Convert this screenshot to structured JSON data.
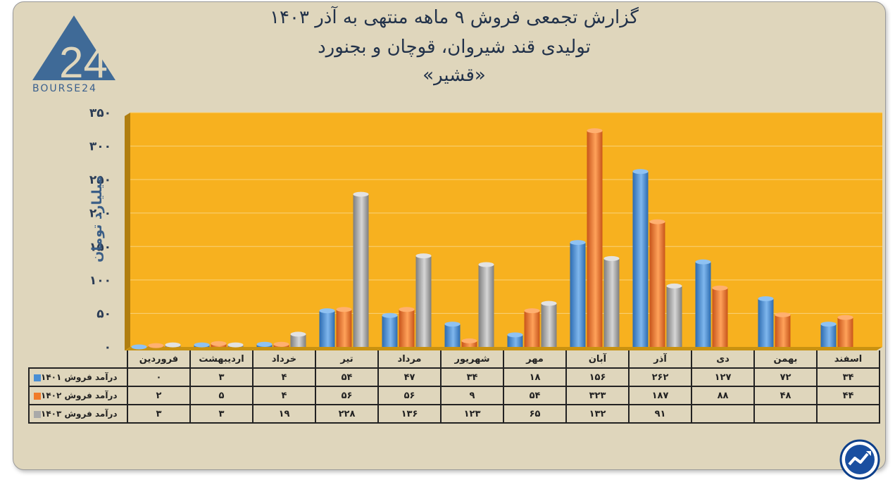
{
  "header": {
    "title_line1": "گزارش تجمعی فروش ۹ ماهه منتهی به آذر ۱۴۰۳",
    "title_line2": "تولیدی قند شیروان، قوچان و بجنورد",
    "title_line3": "«قشیر»"
  },
  "logo": {
    "text": "BOURSE24",
    "mark": "24"
  },
  "colors": {
    "plot_bg": "#f7b11f",
    "card_bg": "#dfd6bc",
    "series1": "#4a8fd4",
    "series2": "#f07b2a",
    "series3": "#a9a9a9"
  },
  "chart_data": {
    "type": "bar",
    "ylabel": "میلیارد تومان",
    "ylim": [
      0,
      350
    ],
    "yticks": [
      "۰",
      "۵۰",
      "۱۰۰",
      "۱۵۰",
      "۲۰۰",
      "۲۵۰",
      "۳۰۰",
      "۳۵۰"
    ],
    "ytick_values": [
      0,
      50,
      100,
      150,
      200,
      250,
      300,
      350
    ],
    "categories": [
      "فروردین",
      "اردیبهشت",
      "خرداد",
      "تیر",
      "مرداد",
      "شهریور",
      "مهر",
      "آبان",
      "آذر",
      "دی",
      "بهمن",
      "اسفند"
    ],
    "grid": true,
    "series": [
      {
        "name": "درآمد فروش ۱۴۰۱",
        "values": [
          0,
          3,
          4,
          54,
          47,
          34,
          18,
          156,
          262,
          127,
          72,
          34
        ],
        "labels": [
          "۰",
          "۳",
          "۴",
          "۵۴",
          "۴۷",
          "۳۴",
          "۱۸",
          "۱۵۶",
          "۲۶۲",
          "۱۲۷",
          "۷۲",
          "۳۴"
        ]
      },
      {
        "name": "درآمد فروش ۱۴۰۲",
        "values": [
          2,
          5,
          4,
          56,
          56,
          9,
          54,
          323,
          187,
          88,
          48,
          44
        ],
        "labels": [
          "۲",
          "۵",
          "۴",
          "۵۶",
          "۵۶",
          "۹",
          "۵۴",
          "۳۲۳",
          "۱۸۷",
          "۸۸",
          "۴۸",
          "۴۴"
        ]
      },
      {
        "name": "درآمد فروش ۱۴۰۳",
        "values": [
          3,
          3,
          19,
          228,
          136,
          123,
          65,
          132,
          91,
          null,
          null,
          null
        ],
        "labels": [
          "۳",
          "۳",
          "۱۹",
          "۲۲۸",
          "۱۳۶",
          "۱۲۳",
          "۶۵",
          "۱۳۲",
          "۹۱",
          "",
          "",
          ""
        ]
      }
    ]
  }
}
